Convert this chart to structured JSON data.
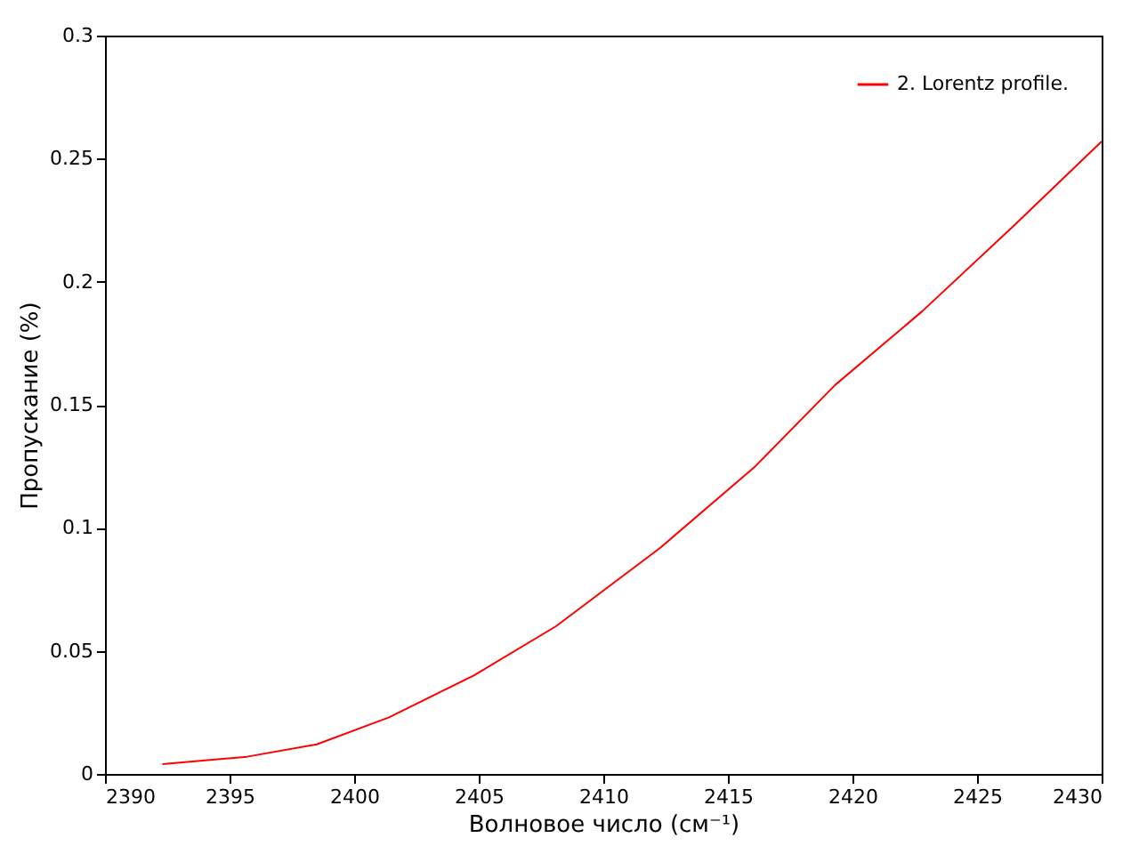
{
  "chart_data": {
    "type": "line",
    "xlabel": "Волновое число (см⁻¹)",
    "ylabel": "Пропускание (%)",
    "xlim": [
      2390,
      2430
    ],
    "xticks": [
      2390,
      2395,
      2400,
      2405,
      2410,
      2415,
      2420,
      2425,
      2430
    ],
    "ylim": [
      0,
      0.3
    ],
    "yticks": [
      0,
      0.05,
      0.1,
      0.15,
      0.2,
      0.25,
      0.3
    ],
    "grid": false,
    "legend": "top right",
    "marker": "none",
    "line_style": "solid",
    "series": [
      {
        "name": "2. Lorentz profile.",
        "color": "#ff0000",
        "x": [
          2392.3,
          2395.7,
          2398.5,
          2401.4,
          2404.8,
          2408.1,
          2412.3,
          2416.1,
          2419.3,
          2422.8,
          2426.4,
          2430
        ],
        "values": [
          0.004,
          0.007,
          0.012,
          0.023,
          0.04,
          0.06,
          0.092,
          0.125,
          0.158,
          0.188,
          0.222,
          0.257
        ]
      }
    ]
  }
}
